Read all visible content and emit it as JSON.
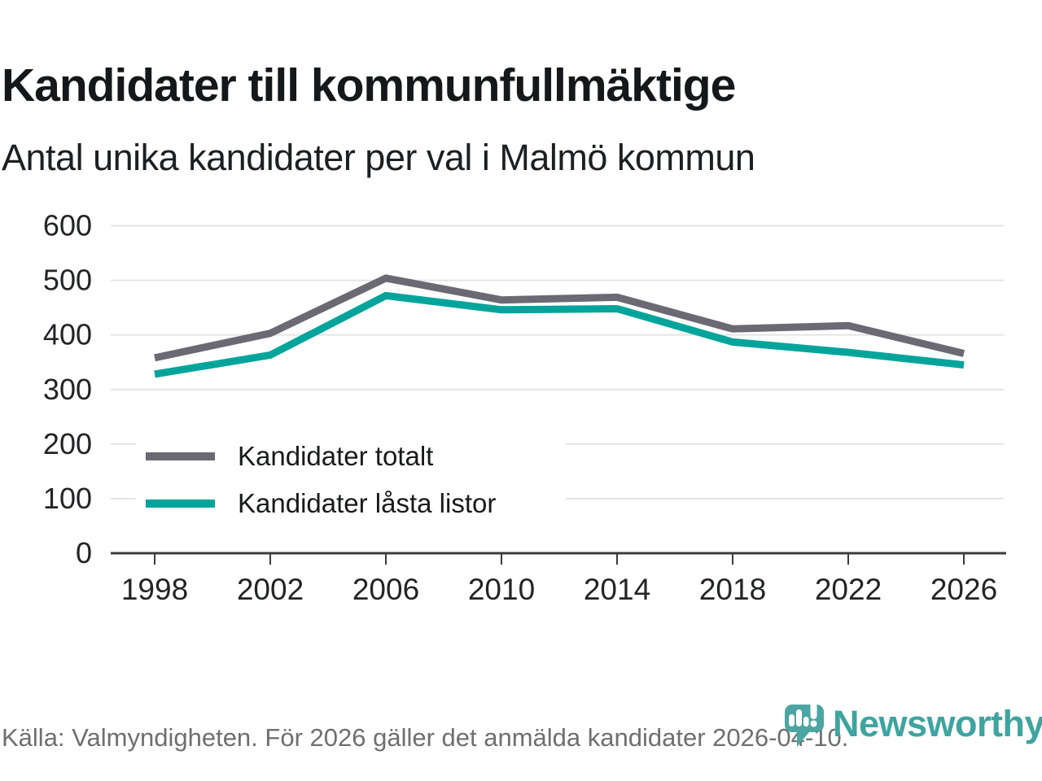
{
  "header": {
    "title": "Kandidater till kommunfullmäktige",
    "subtitle": "Antal unika kandidater per val i Malmö kommun"
  },
  "chart_data": {
    "type": "line",
    "x": [
      1998,
      2002,
      2006,
      2010,
      2014,
      2018,
      2022,
      2026
    ],
    "series": [
      {
        "name": "Kandidater totalt",
        "color": "#6b6973",
        "values": [
          358,
          403,
          504,
          464,
          469,
          411,
          417,
          366
        ]
      },
      {
        "name": "Kandidater låsta listor",
        "color": "#00a49b",
        "values": [
          328,
          363,
          472,
          446,
          448,
          387,
          368,
          345
        ]
      }
    ],
    "title": "Kandidater till kommunfullmäktige",
    "subtitle": "Antal unika kandidater per val i Malmö kommun",
    "xlabel": "",
    "ylabel": "",
    "ylim": [
      0,
      600
    ],
    "yticks": [
      0,
      100,
      200,
      300,
      400,
      500,
      600
    ],
    "grid": true,
    "legend_position": "inside-left"
  },
  "footer": {
    "source": "Källa: Valmyndigheten. För 2026 gäller det anmälda kandidater 2026-04-10."
  },
  "branding": {
    "name": "Newsworthy",
    "icon": "newsworthy-pin-barchart-icon",
    "text_color": "#3ea4a0",
    "icon_color": "#4aa6a0"
  },
  "colors": {
    "gridline": "#e4e4e4",
    "axis": "#3b3b3b",
    "axis_text": "#222426",
    "series_total": "#6b6973",
    "series_locked": "#00a49b"
  }
}
